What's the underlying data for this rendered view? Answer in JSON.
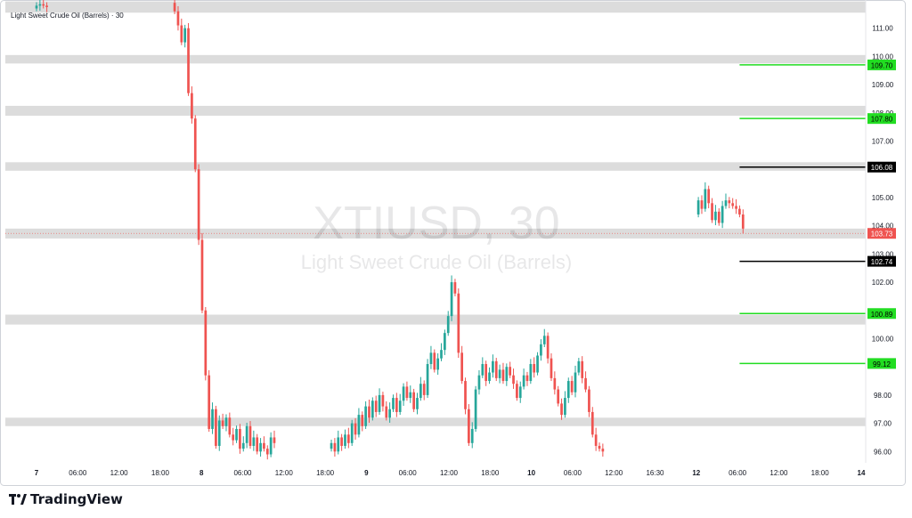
{
  "brand": {
    "name": "TradingView",
    "logo_icon": "tradingview-logo-icon"
  },
  "legend": {
    "title": "Light Sweet Crude Oil (Barrels) · 30"
  },
  "watermark": {
    "symbol": "XTIUSD, 30",
    "description": "Light Sweet Crude Oil (Barrels)"
  },
  "colors": {
    "up": "#26a69a",
    "down": "#ef5350",
    "zone": "#dcdcdc",
    "green_level": "#22dd22",
    "black_level": "#000000",
    "last_price": "#ef5350"
  },
  "chart_data": {
    "type": "candlestick",
    "title": "XTIUSD, 30",
    "subtitle": "Light Sweet Crude Oil (Barrels)",
    "ylim": [
      95.6,
      112.0
    ],
    "y_ticks": [
      "111.00",
      "110.00",
      "109.00",
      "108.00",
      "107.00",
      "105.00",
      "104.00",
      "103.00",
      "102.00",
      "100.00",
      "98.00",
      "97.00",
      "96.00"
    ],
    "x_ticks": [
      {
        "label": "7",
        "bold": true,
        "x": 0
      },
      {
        "label": "06:00",
        "x": 1
      },
      {
        "label": "12:00",
        "x": 2
      },
      {
        "label": "18:00",
        "x": 3
      },
      {
        "label": "8",
        "bold": true,
        "x": 4
      },
      {
        "label": "06:00",
        "x": 5
      },
      {
        "label": "12:00",
        "x": 6
      },
      {
        "label": "18:00",
        "x": 7
      },
      {
        "label": "9",
        "bold": true,
        "x": 8
      },
      {
        "label": "06:00",
        "x": 9
      },
      {
        "label": "12:00",
        "x": 10
      },
      {
        "label": "18:00",
        "x": 11
      },
      {
        "label": "10",
        "bold": true,
        "x": 12
      },
      {
        "label": "06:00",
        "x": 13
      },
      {
        "label": "12:00",
        "x": 14
      },
      {
        "label": "16:30",
        "x": 15
      },
      {
        "label": "12",
        "bold": true,
        "x": 16
      },
      {
        "label": "06:00",
        "x": 17
      },
      {
        "label": "12:00",
        "x": 18
      },
      {
        "label": "18:00",
        "x": 19
      },
      {
        "label": "14",
        "bold": true,
        "x": 20
      }
    ],
    "zones": [
      {
        "from": 111.55,
        "to": 111.95
      },
      {
        "from": 109.75,
        "to": 110.05
      },
      {
        "from": 107.9,
        "to": 108.25
      },
      {
        "from": 105.95,
        "to": 106.25
      },
      {
        "from": 103.55,
        "to": 103.9
      },
      {
        "from": 100.5,
        "to": 100.85
      },
      {
        "from": 96.9,
        "to": 97.2
      }
    ],
    "levels": [
      {
        "price": 109.7,
        "label": "109.70",
        "color": "green"
      },
      {
        "price": 107.8,
        "label": "107.80",
        "color": "green"
      },
      {
        "price": 106.08,
        "label": "106.08",
        "color": "black"
      },
      {
        "price": 102.74,
        "label": "102.74",
        "color": "black"
      },
      {
        "price": 100.89,
        "label": "100.89",
        "color": "green"
      },
      {
        "price": 99.12,
        "label": "99.12",
        "color": "green"
      }
    ],
    "last_price": {
      "price": 103.73,
      "label": "103.73"
    },
    "level_line_start_x": 17.05,
    "candle_bars_per_tick": 12,
    "segments": [
      {
        "start_x": 0.0,
        "open": 111.7,
        "path": [
          111.8,
          111.85,
          111.8,
          111.75
        ]
      },
      {
        "start_x": 3.35,
        "open": 111.9,
        "path": [
          111.6,
          111.1,
          110.5,
          111.0,
          108.7,
          107.8,
          106.0,
          103.5,
          101.0,
          98.7,
          96.8,
          97.5,
          96.2,
          97.1,
          96.9,
          97.2,
          96.6,
          96.4,
          96.8,
          96.1,
          96.3,
          96.9,
          96.2,
          96.5,
          96.0,
          96.3,
          96.1,
          95.9,
          96.5,
          96.3
        ]
      },
      {
        "start_x": 7.15,
        "open": 96.1,
        "path": [
          96.3,
          96.0,
          96.5,
          96.2,
          96.6,
          96.3,
          97.0,
          96.6,
          97.3,
          96.9,
          97.6,
          97.2,
          97.8,
          97.4,
          98.0,
          97.6,
          97.2,
          97.5,
          97.9,
          97.4,
          97.8,
          98.3,
          97.9,
          98.1,
          97.5,
          97.9,
          98.4,
          98.0,
          99.1,
          99.5,
          98.9,
          99.3,
          99.6,
          100.2,
          100.8,
          102.0,
          101.6,
          99.5,
          98.5,
          97.5,
          96.3,
          96.8,
          98.2,
          98.7,
          99.1,
          98.5,
          98.8,
          99.2,
          98.6,
          98.9,
          98.5,
          99.0,
          98.7,
          98.4,
          97.9,
          98.3,
          98.7,
          98.5,
          99.1,
          98.8,
          99.4,
          99.8,
          100.1,
          99.3,
          98.6,
          98.2,
          97.7,
          97.3,
          97.9,
          98.5,
          98.1,
          98.8,
          99.2,
          98.6,
          98.2,
          97.4,
          96.6,
          96.2,
          96.1,
          96.0
        ]
      },
      {
        "start_x": 16.05,
        "open": 104.4,
        "path": [
          104.9,
          104.6,
          105.3,
          104.8,
          104.2,
          104.5,
          104.1,
          104.7,
          104.9,
          104.8,
          104.7,
          104.6,
          104.4,
          103.9
        ]
      }
    ]
  }
}
